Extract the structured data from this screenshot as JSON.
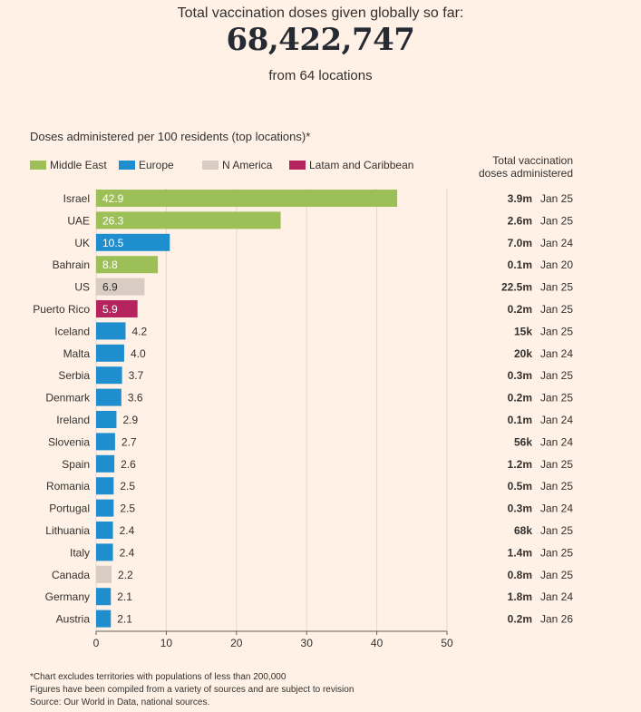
{
  "header": {
    "title": "Total vaccination doses given globally so far:",
    "total": "68,422,747",
    "subtitle": "from 64 locations"
  },
  "chart_data": {
    "type": "bar",
    "orientation": "horizontal",
    "subtitle": "Doses administered per 100 residents (top locations)*",
    "xlim": [
      0,
      50
    ],
    "xticks": [
      "0",
      "10",
      "20",
      "30",
      "40",
      "50"
    ],
    "total_column_header": [
      "Total vaccination",
      "doses administered"
    ],
    "legend": [
      {
        "name": "Middle East",
        "color": "#9dbf57"
      },
      {
        "name": "Europe",
        "color": "#1f8ecf"
      },
      {
        "name": "N America",
        "color": "#d9ccc2"
      },
      {
        "name": "Latam and Caribbean",
        "color": "#b5245e"
      }
    ],
    "region_colors": {
      "Middle East": "#9dbf57",
      "Europe": "#1f8ecf",
      "N America": "#d9ccc2",
      "Latam and Caribbean": "#b5245e"
    },
    "rows": [
      {
        "location": "Israel",
        "value": 42.9,
        "label": "42.9",
        "region": "Middle East",
        "total": "3.9m",
        "date": "Jan 25"
      },
      {
        "location": "UAE",
        "value": 26.3,
        "label": "26.3",
        "region": "Middle East",
        "total": "2.6m",
        "date": "Jan 25"
      },
      {
        "location": "UK",
        "value": 10.5,
        "label": "10.5",
        "region": "Europe",
        "total": "7.0m",
        "date": "Jan 24"
      },
      {
        "location": "Bahrain",
        "value": 8.8,
        "label": "8.8",
        "region": "Middle East",
        "total": "0.1m",
        "date": "Jan 20"
      },
      {
        "location": "US",
        "value": 6.9,
        "label": "6.9",
        "region": "N America",
        "total": "22.5m",
        "date": "Jan 25"
      },
      {
        "location": "Puerto Rico",
        "value": 5.9,
        "label": "5.9",
        "region": "Latam and Caribbean",
        "total": "0.2m",
        "date": "Jan 25"
      },
      {
        "location": "Iceland",
        "value": 4.2,
        "label": "4.2",
        "region": "Europe",
        "total": "15k",
        "date": "Jan 25"
      },
      {
        "location": "Malta",
        "value": 4.0,
        "label": "4.0",
        "region": "Europe",
        "total": "20k",
        "date": "Jan 24"
      },
      {
        "location": "Serbia",
        "value": 3.7,
        "label": "3.7",
        "region": "Europe",
        "total": "0.3m",
        "date": "Jan 25"
      },
      {
        "location": "Denmark",
        "value": 3.6,
        "label": "3.6",
        "region": "Europe",
        "total": "0.2m",
        "date": "Jan 25"
      },
      {
        "location": "Ireland",
        "value": 2.9,
        "label": "2.9",
        "region": "Europe",
        "total": "0.1m",
        "date": "Jan 24"
      },
      {
        "location": "Slovenia",
        "value": 2.7,
        "label": "2.7",
        "region": "Europe",
        "total": "56k",
        "date": "Jan 24"
      },
      {
        "location": "Spain",
        "value": 2.6,
        "label": "2.6",
        "region": "Europe",
        "total": "1.2m",
        "date": "Jan 25"
      },
      {
        "location": "Romania",
        "value": 2.5,
        "label": "2.5",
        "region": "Europe",
        "total": "0.5m",
        "date": "Jan 25"
      },
      {
        "location": "Portugal",
        "value": 2.5,
        "label": "2.5",
        "region": "Europe",
        "total": "0.3m",
        "date": "Jan 24"
      },
      {
        "location": "Lithuania",
        "value": 2.4,
        "label": "2.4",
        "region": "Europe",
        "total": "68k",
        "date": "Jan 25"
      },
      {
        "location": "Italy",
        "value": 2.4,
        "label": "2.4",
        "region": "Europe",
        "total": "1.4m",
        "date": "Jan 25"
      },
      {
        "location": "Canada",
        "value": 2.2,
        "label": "2.2",
        "region": "N America",
        "total": "0.8m",
        "date": "Jan 25"
      },
      {
        "location": "Germany",
        "value": 2.1,
        "label": "2.1",
        "region": "Europe",
        "total": "1.8m",
        "date": "Jan 24"
      },
      {
        "location": "Austria",
        "value": 2.1,
        "label": "2.1",
        "region": "Europe",
        "total": "0.2m",
        "date": "Jan 26"
      }
    ]
  },
  "notes": [
    "*Chart excludes territories with populations of less than 200,000",
    "Figures have been compiled from a variety of sources and are subject to revision",
    "Source: Our World in Data, national sources."
  ]
}
